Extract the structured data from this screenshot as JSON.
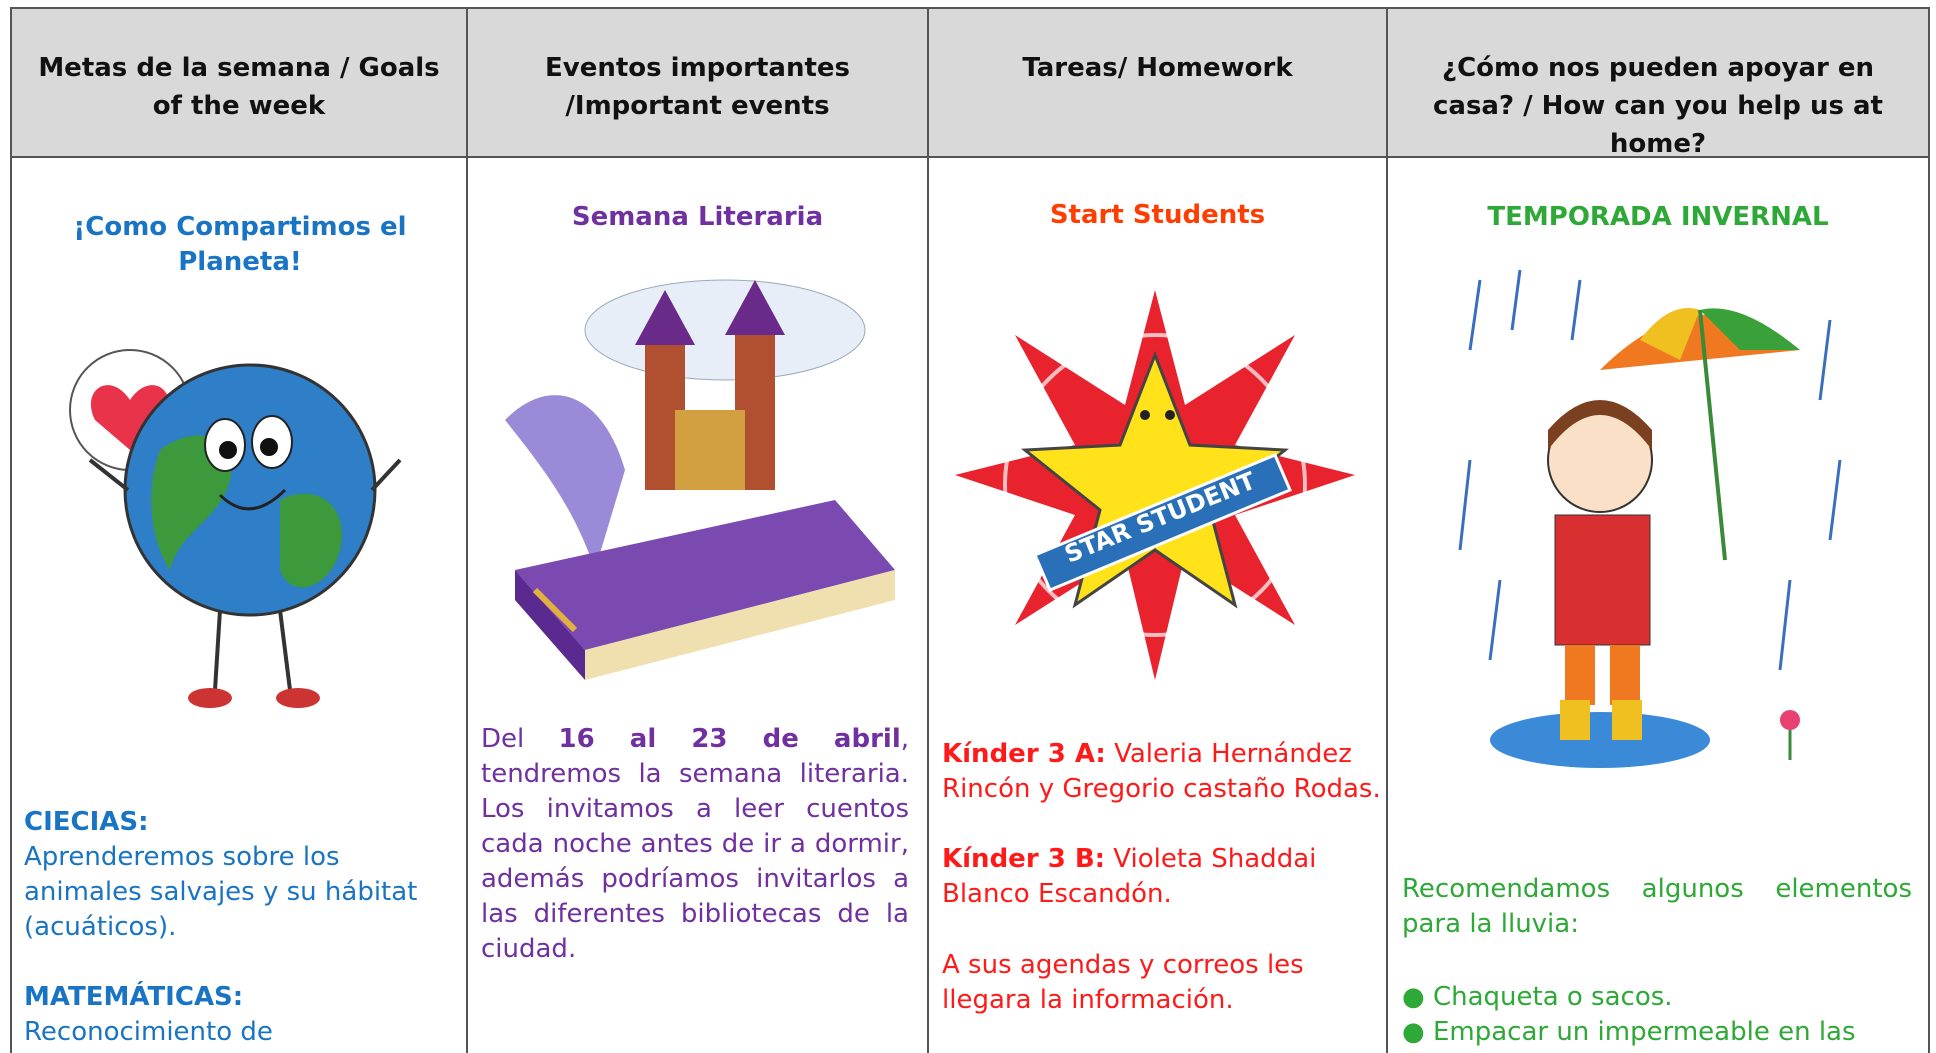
{
  "header": {
    "columns": [
      "Metas de la semana / Goals of the week",
      "Eventos importantes /Important events",
      "Tareas/ Homework",
      "¿Cómo nos pueden apoyar en casa? / How can you help us at home?"
    ]
  },
  "goals": {
    "title": "¡Como Compartimos el Planeta!",
    "science_label": "CIECIAS:",
    "science_text": "Aprenderemos sobre los animales salvajes y su hábitat (acuáticos).",
    "math_label": "MATEMÁTICAS:",
    "math_text": "Reconocimiento de"
  },
  "events": {
    "title": "Semana Literaria",
    "text_before": "Del ",
    "text_bold": "16 al 23 de abril",
    "text_after": ", tendremos la semana literaria. Los invitamos a leer cuentos cada noche antes de ir a dormir, además podríamos invitarlos a las diferentes bibliotecas de la ciudad."
  },
  "homework": {
    "title": "Start Students",
    "group_a_label": "Kínder 3 A:",
    "group_a_text": " Valeria Hernández Rincón y Gregorio castaño Rodas.",
    "group_b_label": "Kínder 3 B:",
    "group_b_text": " Violeta  Shaddai Blanco Escandón.",
    "note": "A sus agendas y correos les llegara la información."
  },
  "help": {
    "title": "TEMPORADA INVERNAL",
    "text": "Recomendamos algunos elementos para la lluvia:",
    "items": [
      "Chaqueta o sacos.",
      "Empacar un impermeable en las"
    ]
  }
}
